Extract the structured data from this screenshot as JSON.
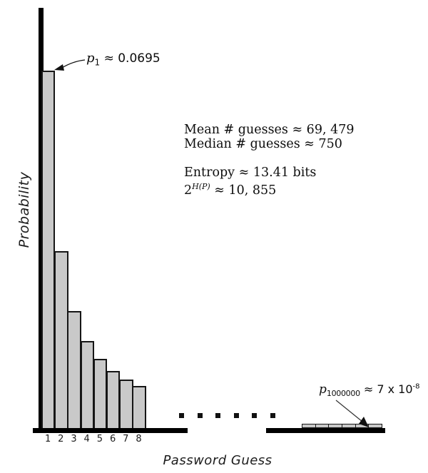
{
  "chart_data": {
    "type": "bar",
    "title": "",
    "xlabel": "Password Guess",
    "ylabel": "Probability",
    "categories": [
      "1",
      "2",
      "3",
      "4",
      "5",
      "6",
      "7",
      "8"
    ],
    "values": [
      0.0695,
      0.0344,
      0.0228,
      0.0169,
      0.0135,
      0.0111,
      0.0094,
      0.0082
    ],
    "ylim": [
      0,
      0.075
    ],
    "grid": false,
    "legend": false,
    "ellipsis_dot_count": 6,
    "tail_bar_count": 6,
    "tail_value": 7e-08,
    "annotations": {
      "p1": {
        "var": "p",
        "sub": "1",
        "rest": " ≈ 0.0695"
      },
      "p1000000": {
        "var": "p",
        "sub": "1000000",
        "rest": " ≈ 7 x 10",
        "sup": "-8"
      }
    },
    "stats": {
      "line1": "Mean # guesses ≈ 69, 479",
      "line2": "Median # guesses ≈ 750",
      "line3": "Entropy ≈ 13.41 bits",
      "line4_base": "2",
      "line4_sup": "H(P)",
      "line4_rest": " ≈ 10, 855"
    },
    "colors": {
      "bar_fill": "#c9c9c9",
      "bar_border": "#161616",
      "axis": "#000000",
      "text": "#0d0d0d"
    }
  }
}
